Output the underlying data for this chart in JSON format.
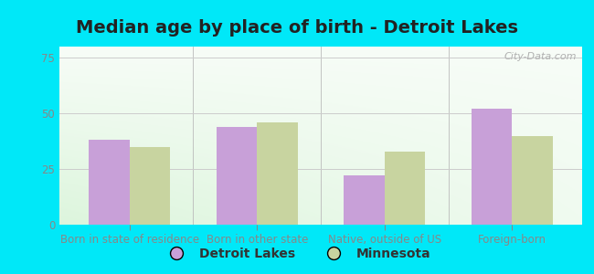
{
  "title": "Median age by place of birth - Detroit Lakes",
  "categories": [
    "Born in state of residence",
    "Born in other state",
    "Native, outside of US",
    "Foreign-born"
  ],
  "detroit_lakes": [
    38,
    44,
    22,
    52
  ],
  "minnesota": [
    35,
    46,
    33,
    40
  ],
  "detroit_color": "#c8a0d8",
  "minnesota_color": "#c8d4a0",
  "bar_width": 0.32,
  "ylim": [
    0,
    80
  ],
  "yticks": [
    0,
    25,
    50,
    75
  ],
  "bg_outer": "#00e8f8",
  "legend_detroit": "Detroit Lakes",
  "legend_minnesota": "Minnesota",
  "title_fontsize": 14,
  "tick_fontsize": 8.5,
  "legend_fontsize": 10,
  "watermark": "City-Data.com"
}
